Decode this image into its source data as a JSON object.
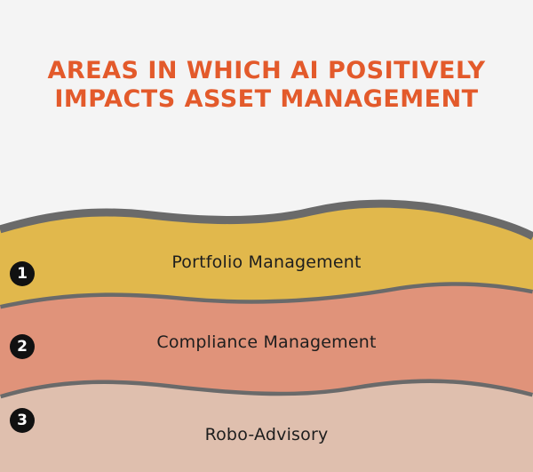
{
  "title": {
    "line1": "AREAS IN WHICH AI POSITIVELY",
    "line2": "IMPACTS ASSET MANAGEMENT"
  },
  "layers": [
    {
      "number": "1",
      "label": "Portfolio Management",
      "color": "#e1b84c"
    },
    {
      "number": "2",
      "label": "Compliance Management",
      "color": "#e0937a"
    },
    {
      "number": "3",
      "label": "Robo-Advisory",
      "color": "#dfbfae"
    }
  ],
  "colors": {
    "title": "#e35a2b",
    "border": "#6a6a6a",
    "background": "#f4f4f4",
    "badge": "#111111"
  }
}
